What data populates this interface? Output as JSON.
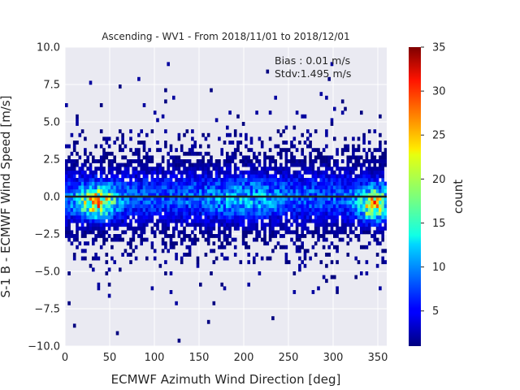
{
  "chart_data": {
    "type": "heatmap",
    "title": "Ascending - WV1 - From 2018/11/01 to 2018/12/01",
    "xlabel": "ECMWF Azimuth Wind Direction [deg]",
    "ylabel": "S-1 B - ECMWF Wind Speed [m/s]",
    "xlim": [
      0,
      360
    ],
    "ylim": [
      -10,
      10
    ],
    "x_ticks": [
      0,
      50,
      100,
      150,
      200,
      250,
      300,
      350
    ],
    "y_ticks": [
      -10.0,
      -7.5,
      -5.0,
      -2.5,
      0.0,
      2.5,
      5.0,
      7.5,
      10.0
    ],
    "x_tick_labels": [
      "0",
      "50",
      "100",
      "150",
      "200",
      "250",
      "300",
      "350"
    ],
    "y_tick_labels": [
      "−10.0",
      "−7.5",
      "−5.0",
      "−2.5",
      "0.0",
      "2.5",
      "5.0",
      "7.5",
      "10.0"
    ],
    "grid": true,
    "zero_line": 0,
    "bin_size": {
      "x": 3,
      "y": 0.25
    },
    "annotations": [
      "Bias : 0.01 m/s",
      "Stdv:1.495 m/s"
    ],
    "colorbar": {
      "label": "count",
      "min": 1,
      "max": 35,
      "ticks": [
        5,
        10,
        15,
        20,
        25,
        30,
        35
      ],
      "tick_labels": [
        "5",
        "10",
        "15",
        "20",
        "25",
        "30",
        "35"
      ],
      "colormap": "jet"
    },
    "density_peaks": [
      {
        "direction_deg": 35,
        "difference_ms": -0.4,
        "count": 24
      },
      {
        "direction_deg": 340,
        "difference_ms": -0.6,
        "count": 23
      },
      {
        "direction_deg": 200,
        "difference_ms": -0.4,
        "count": 8
      },
      {
        "direction_deg": 110,
        "difference_ms": 0.5,
        "count": 7
      }
    ]
  },
  "colors": {
    "plot_background": "#eaeaf2",
    "grid": "#ffffff",
    "zero_line": "#222222"
  }
}
